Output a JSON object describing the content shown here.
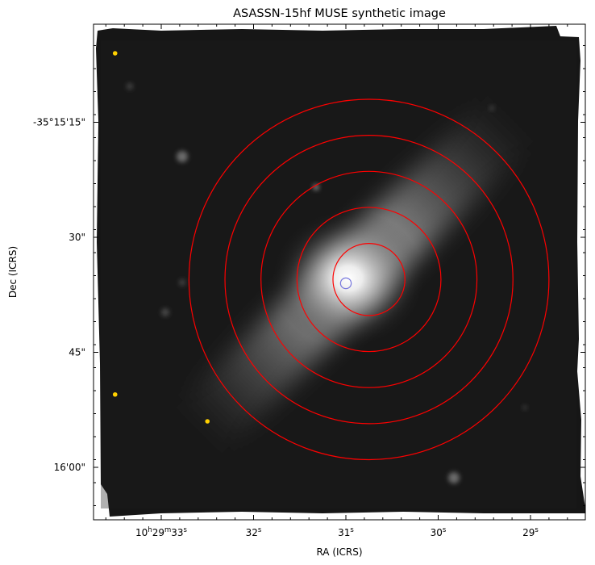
{
  "chart_data": {
    "type": "image",
    "title": "ASASSN-15hf MUSE synthetic image",
    "xlabel": "RA (ICRS)",
    "ylabel": "Dec (ICRS)",
    "colormap": "grayscale",
    "x_ticks": [
      {
        "pre": "10",
        "sup1": "h",
        "mid": "29",
        "sup2": "m",
        "post": "33",
        "sup3": "s",
        "ra_sec": 33
      },
      {
        "pre": "",
        "sup1": "",
        "mid": "",
        "sup2": "",
        "post": "32",
        "sup3": "s",
        "ra_sec": 32
      },
      {
        "pre": "",
        "sup1": "",
        "mid": "",
        "sup2": "",
        "post": "31",
        "sup3": "s",
        "ra_sec": 31
      },
      {
        "pre": "",
        "sup1": "",
        "mid": "",
        "sup2": "",
        "post": "30",
        "sup3": "s",
        "ra_sec": 30
      },
      {
        "pre": "",
        "sup1": "",
        "mid": "",
        "sup2": "",
        "post": "29",
        "sup3": "s",
        "ra_sec": 29
      }
    ],
    "y_ticks": [
      {
        "label": "-35°15'15\"",
        "dec_arcsec": 15
      },
      {
        "label": "30\"",
        "dec_arcsec": 30
      },
      {
        "label": "45\"",
        "dec_arcsec": 45
      },
      {
        "label": "16'00\"",
        "dec_arcsec": 60
      }
    ],
    "apertures": {
      "color": "#ff0000",
      "center": {
        "ra_sec": 30.75,
        "dec_arcsec": 35.5
      },
      "radii_arcsec": [
        4.7,
        9.4,
        14.1,
        18.8,
        23.5
      ]
    },
    "target_marker": {
      "color": "#7777dd",
      "ra_sec": 31.0,
      "dec_arcsec": 36.0,
      "radius_arcsec": 0.7
    },
    "point_sources": [
      {
        "color": "#ffd000",
        "ra_sec": 33.5,
        "dec_arcsec": 6.0
      },
      {
        "color": "#ffd000",
        "ra_sec": 33.5,
        "dec_arcsec": 50.5
      },
      {
        "color": "#ffd000",
        "ra_sec": 32.5,
        "dec_arcsec": 54.0
      }
    ]
  }
}
